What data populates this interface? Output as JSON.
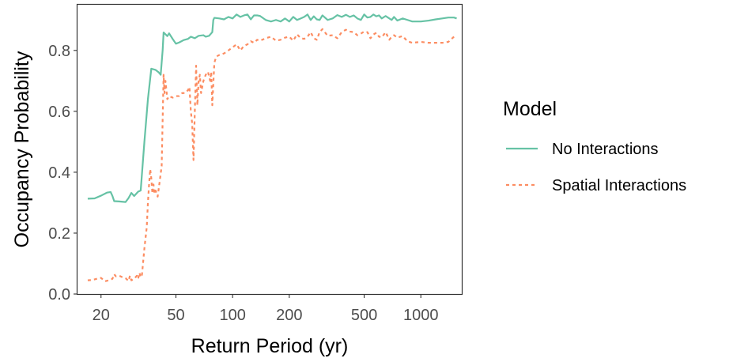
{
  "chart_data": {
    "type": "line",
    "xlabel": "Return Period (yr)",
    "ylabel": "Occupancy Probability",
    "x_scale": "log10",
    "xlim": [
      15,
      1650
    ],
    "ylim": [
      0,
      0.95
    ],
    "x_ticks": [
      20,
      50,
      100,
      200,
      500,
      1000
    ],
    "x_tick_labels": [
      "20",
      "50",
      "100",
      "200",
      "500",
      "1000"
    ],
    "y_ticks": [
      0.0,
      0.2,
      0.4,
      0.6,
      0.8
    ],
    "y_tick_labels": [
      "0.0",
      "0.2",
      "0.4",
      "0.6",
      "0.8"
    ],
    "grid": false,
    "legend": {
      "title": "Model",
      "position": "right"
    },
    "series": [
      {
        "name": "No Interactions",
        "color": "#66c2a5",
        "dash": "solid",
        "points": [
          [
            17,
            0.313
          ],
          [
            18.5,
            0.314
          ],
          [
            20,
            0.323
          ],
          [
            21.5,
            0.333
          ],
          [
            22.5,
            0.335
          ],
          [
            23,
            0.322
          ],
          [
            23.5,
            0.305
          ],
          [
            25,
            0.304
          ],
          [
            27,
            0.302
          ],
          [
            28,
            0.315
          ],
          [
            29,
            0.332
          ],
          [
            30,
            0.322
          ],
          [
            31.5,
            0.336
          ],
          [
            32.5,
            0.34
          ],
          [
            34,
            0.5
          ],
          [
            35.5,
            0.64
          ],
          [
            37,
            0.74
          ],
          [
            39,
            0.736
          ],
          [
            40.5,
            0.728
          ],
          [
            41.5,
            0.72
          ],
          [
            42.5,
            0.8
          ],
          [
            43,
            0.859
          ],
          [
            44,
            0.853
          ],
          [
            45,
            0.847
          ],
          [
            46,
            0.856
          ],
          [
            48,
            0.838
          ],
          [
            50,
            0.822
          ],
          [
            52,
            0.826
          ],
          [
            55,
            0.834
          ],
          [
            58,
            0.838
          ],
          [
            60,
            0.845
          ],
          [
            63,
            0.84
          ],
          [
            66,
            0.848
          ],
          [
            70,
            0.85
          ],
          [
            72,
            0.845
          ],
          [
            75,
            0.848
          ],
          [
            78,
            0.86
          ],
          [
            79,
            0.9
          ],
          [
            80,
            0.907
          ],
          [
            85,
            0.905
          ],
          [
            90,
            0.902
          ],
          [
            95,
            0.91
          ],
          [
            100,
            0.905
          ],
          [
            105,
            0.918
          ],
          [
            110,
            0.91
          ],
          [
            115,
            0.915
          ],
          [
            120,
            0.918
          ],
          [
            125,
            0.902
          ],
          [
            130,
            0.915
          ],
          [
            135,
            0.915
          ],
          [
            140,
            0.913
          ],
          [
            150,
            0.9
          ],
          [
            160,
            0.895
          ],
          [
            170,
            0.9
          ],
          [
            180,
            0.895
          ],
          [
            190,
            0.905
          ],
          [
            200,
            0.895
          ],
          [
            210,
            0.91
          ],
          [
            220,
            0.9
          ],
          [
            230,
            0.905
          ],
          [
            240,
            0.91
          ],
          [
            250,
            0.918
          ],
          [
            260,
            0.9
          ],
          [
            270,
            0.912
          ],
          [
            280,
            0.902
          ],
          [
            290,
            0.9
          ],
          [
            300,
            0.915
          ],
          [
            320,
            0.9
          ],
          [
            340,
            0.905
          ],
          [
            360,
            0.916
          ],
          [
            380,
            0.91
          ],
          [
            400,
            0.917
          ],
          [
            420,
            0.91
          ],
          [
            440,
            0.915
          ],
          [
            460,
            0.905
          ],
          [
            480,
            0.9
          ],
          [
            500,
            0.918
          ],
          [
            520,
            0.908
          ],
          [
            540,
            0.91
          ],
          [
            560,
            0.918
          ],
          [
            580,
            0.912
          ],
          [
            600,
            0.915
          ],
          [
            620,
            0.905
          ],
          [
            650,
            0.913
          ],
          [
            680,
            0.905
          ],
          [
            700,
            0.9
          ],
          [
            720,
            0.91
          ],
          [
            750,
            0.898
          ],
          [
            800,
            0.905
          ],
          [
            850,
            0.9
          ],
          [
            900,
            0.895
          ],
          [
            1000,
            0.895
          ],
          [
            1100,
            0.898
          ],
          [
            1200,
            0.902
          ],
          [
            1300,
            0.905
          ],
          [
            1400,
            0.908
          ],
          [
            1500,
            0.908
          ],
          [
            1550,
            0.905
          ]
        ]
      },
      {
        "name": "Spatial Interactions",
        "color": "#fc8d62",
        "dash": "dashed",
        "points": [
          [
            17,
            0.045
          ],
          [
            18,
            0.046
          ],
          [
            19,
            0.05
          ],
          [
            20,
            0.053
          ],
          [
            21,
            0.042
          ],
          [
            22,
            0.045
          ],
          [
            23,
            0.05
          ],
          [
            23.5,
            0.065
          ],
          [
            24,
            0.058
          ],
          [
            25,
            0.06
          ],
          [
            26,
            0.055
          ],
          [
            27,
            0.052
          ],
          [
            28,
            0.043
          ],
          [
            28.5,
            0.06
          ],
          [
            29,
            0.045
          ],
          [
            30,
            0.05
          ],
          [
            31,
            0.06
          ],
          [
            31.5,
            0.05
          ],
          [
            32,
            0.07
          ],
          [
            32.5,
            0.055
          ],
          [
            33,
            0.063
          ],
          [
            34,
            0.15
          ],
          [
            35,
            0.22
          ],
          [
            35.5,
            0.3
          ],
          [
            36,
            0.36
          ],
          [
            36.5,
            0.41
          ],
          [
            37,
            0.38
          ],
          [
            37.5,
            0.33
          ],
          [
            38,
            0.36
          ],
          [
            38.5,
            0.33
          ],
          [
            39,
            0.34
          ],
          [
            40,
            0.32
          ],
          [
            41,
            0.37
          ],
          [
            42,
            0.42
          ],
          [
            43,
            0.72
          ],
          [
            43.5,
            0.66
          ],
          [
            44,
            0.7
          ],
          [
            45,
            0.64
          ],
          [
            46,
            0.65
          ],
          [
            48,
            0.645
          ],
          [
            50,
            0.65
          ],
          [
            52,
            0.65
          ],
          [
            54,
            0.66
          ],
          [
            56,
            0.66
          ],
          [
            58,
            0.67
          ],
          [
            59,
            0.68
          ],
          [
            60,
            0.6
          ],
          [
            61,
            0.56
          ],
          [
            62,
            0.44
          ],
          [
            63,
            0.6
          ],
          [
            64,
            0.75
          ],
          [
            65,
            0.62
          ],
          [
            66,
            0.7
          ],
          [
            67,
            0.72
          ],
          [
            68,
            0.66
          ],
          [
            70,
            0.7
          ],
          [
            72,
            0.72
          ],
          [
            74,
            0.73
          ],
          [
            76,
            0.7
          ],
          [
            77,
            0.73
          ],
          [
            78,
            0.62
          ],
          [
            80,
            0.76
          ],
          [
            82,
            0.78
          ],
          [
            85,
            0.785
          ],
          [
            90,
            0.79
          ],
          [
            95,
            0.8
          ],
          [
            100,
            0.81
          ],
          [
            105,
            0.82
          ],
          [
            110,
            0.8
          ],
          [
            115,
            0.815
          ],
          [
            120,
            0.82
          ],
          [
            125,
            0.83
          ],
          [
            130,
            0.825
          ],
          [
            135,
            0.835
          ],
          [
            140,
            0.832
          ],
          [
            150,
            0.84
          ],
          [
            160,
            0.845
          ],
          [
            170,
            0.832
          ],
          [
            180,
            0.835
          ],
          [
            190,
            0.842
          ],
          [
            200,
            0.845
          ],
          [
            210,
            0.832
          ],
          [
            220,
            0.853
          ],
          [
            230,
            0.84
          ],
          [
            240,
            0.838
          ],
          [
            250,
            0.845
          ],
          [
            260,
            0.86
          ],
          [
            270,
            0.84
          ],
          [
            280,
            0.835
          ],
          [
            290,
            0.86
          ],
          [
            300,
            0.87
          ],
          [
            320,
            0.848
          ],
          [
            340,
            0.85
          ],
          [
            360,
            0.84
          ],
          [
            380,
            0.86
          ],
          [
            400,
            0.868
          ],
          [
            420,
            0.862
          ],
          [
            440,
            0.86
          ],
          [
            460,
            0.85
          ],
          [
            480,
            0.855
          ],
          [
            500,
            0.862
          ],
          [
            520,
            0.86
          ],
          [
            540,
            0.84
          ],
          [
            560,
            0.852
          ],
          [
            580,
            0.858
          ],
          [
            600,
            0.845
          ],
          [
            620,
            0.843
          ],
          [
            650,
            0.86
          ],
          [
            680,
            0.835
          ],
          [
            700,
            0.845
          ],
          [
            720,
            0.85
          ],
          [
            750,
            0.842
          ],
          [
            800,
            0.847
          ],
          [
            850,
            0.83
          ],
          [
            900,
            0.825
          ],
          [
            1000,
            0.828
          ],
          [
            1100,
            0.825
          ],
          [
            1200,
            0.825
          ],
          [
            1300,
            0.825
          ],
          [
            1400,
            0.828
          ],
          [
            1500,
            0.845
          ]
        ]
      }
    ]
  }
}
